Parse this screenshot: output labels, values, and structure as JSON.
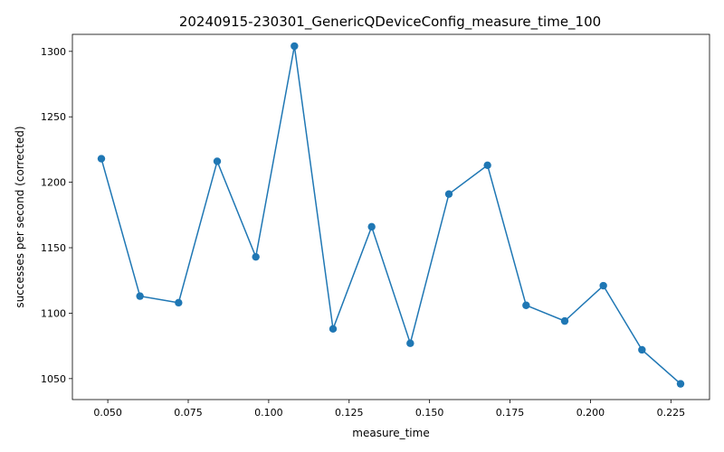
{
  "chart_data": {
    "type": "line",
    "title": "20240915-230301_GenericQDeviceConfig_measure_time_100",
    "xlabel": "measure_time",
    "ylabel": "successes per second (corrected)",
    "xlim": [
      0.039,
      0.237
    ],
    "ylim": [
      1034,
      1313
    ],
    "x_ticks": [
      0.05,
      0.075,
      0.1,
      0.125,
      0.15,
      0.175,
      0.2,
      0.225
    ],
    "x_tick_labels": [
      "0.050",
      "0.075",
      "0.100",
      "0.125",
      "0.150",
      "0.175",
      "0.200",
      "0.225"
    ],
    "y_ticks": [
      1050,
      1100,
      1150,
      1200,
      1250,
      1300
    ],
    "y_tick_labels": [
      "1050",
      "1100",
      "1150",
      "1200",
      "1250",
      "1300"
    ],
    "grid": false,
    "series": [
      {
        "color": "#1f77b4",
        "marker": "circle",
        "x": [
          0.048,
          0.06,
          0.072,
          0.084,
          0.096,
          0.108,
          0.12,
          0.132,
          0.144,
          0.156,
          0.168,
          0.18,
          0.192,
          0.204,
          0.216,
          0.228
        ],
        "y": [
          1218,
          1113,
          1108,
          1216,
          1143,
          1304,
          1088,
          1166,
          1077,
          1191,
          1213,
          1106,
          1094,
          1121,
          1072,
          1046
        ]
      }
    ]
  }
}
